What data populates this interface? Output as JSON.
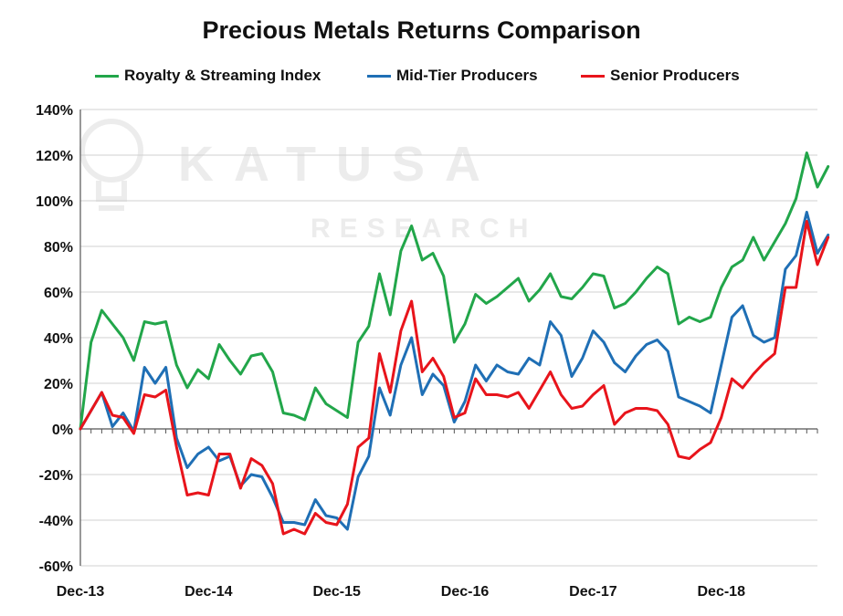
{
  "watermark": {
    "line1": "KATUSA",
    "line2": "RESEARCH"
  },
  "colors": {
    "green": "#22a64a",
    "blue": "#1f6fb5",
    "red": "#e8141b",
    "grid": "#d0d0d0",
    "axis": "#555555"
  },
  "chart_data": {
    "type": "line",
    "title": "Precious Metals Returns Comparison",
    "xlabel": "",
    "ylabel": "",
    "ylim": [
      -60,
      140
    ],
    "yticks": [
      -60,
      -40,
      -20,
      0,
      20,
      40,
      60,
      80,
      100,
      120,
      140
    ],
    "ytick_labels": [
      "-60%",
      "-40%",
      "-20%",
      "0%",
      "20%",
      "40%",
      "60%",
      "80%",
      "100%",
      "120%",
      "140%"
    ],
    "xlim": [
      0,
      69
    ],
    "xticks": [
      0,
      12,
      24,
      36,
      48,
      60
    ],
    "xtick_labels": [
      "Dec-13",
      "Dec-14",
      "Dec-15",
      "Dec-16",
      "Dec-17",
      "Dec-18"
    ],
    "grid": "horizontal",
    "legend_position": "top",
    "series": [
      {
        "name": "Royalty & Streaming Index",
        "color": "#22a64a",
        "values": [
          0,
          38,
          52,
          46,
          40,
          30,
          47,
          46,
          47,
          28,
          18,
          26,
          22,
          37,
          30,
          24,
          32,
          33,
          25,
          7,
          6,
          4,
          18,
          11,
          8,
          5,
          38,
          45,
          68,
          50,
          78,
          89,
          74,
          77,
          67,
          38,
          46,
          59,
          55,
          58,
          62,
          66,
          56,
          61,
          68,
          58,
          57,
          62,
          68,
          67,
          53,
          55,
          60,
          66,
          71,
          68,
          46,
          49,
          47,
          49,
          62,
          71,
          74,
          84,
          74,
          82,
          90,
          101,
          121,
          106,
          115
        ]
      },
      {
        "name": "Mid-Tier Producers",
        "color": "#1f6fb5",
        "values": [
          0,
          8,
          16,
          1,
          7,
          -1,
          27,
          20,
          27,
          -4,
          -17,
          -11,
          -8,
          -14,
          -12,
          -25,
          -20,
          -21,
          -30,
          -41,
          -41,
          -42,
          -31,
          -38,
          -39,
          -44,
          -21,
          -12,
          18,
          6,
          28,
          40,
          15,
          24,
          19,
          3,
          12,
          28,
          21,
          28,
          25,
          24,
          31,
          28,
          47,
          41,
          23,
          31,
          43,
          38,
          29,
          25,
          32,
          37,
          39,
          34,
          14,
          12,
          10,
          7,
          28,
          49,
          54,
          41,
          38,
          40,
          70,
          76,
          95,
          77,
          85
        ]
      },
      {
        "name": "Senior Producers",
        "color": "#e8141b",
        "values": [
          0,
          8,
          16,
          6,
          5,
          -2,
          15,
          14,
          17,
          -8,
          -29,
          -28,
          -29,
          -11,
          -11,
          -26,
          -13,
          -16,
          -24,
          -46,
          -44,
          -46,
          -37,
          -41,
          -42,
          -33,
          -8,
          -4,
          33,
          16,
          43,
          56,
          25,
          31,
          23,
          5,
          7,
          22,
          15,
          15,
          14,
          16,
          9,
          17,
          25,
          15,
          9,
          10,
          15,
          19,
          2,
          7,
          9,
          9,
          8,
          2,
          -12,
          -13,
          -9,
          -6,
          5,
          22,
          18,
          24,
          29,
          33,
          62,
          62,
          91,
          72,
          84
        ]
      }
    ]
  }
}
